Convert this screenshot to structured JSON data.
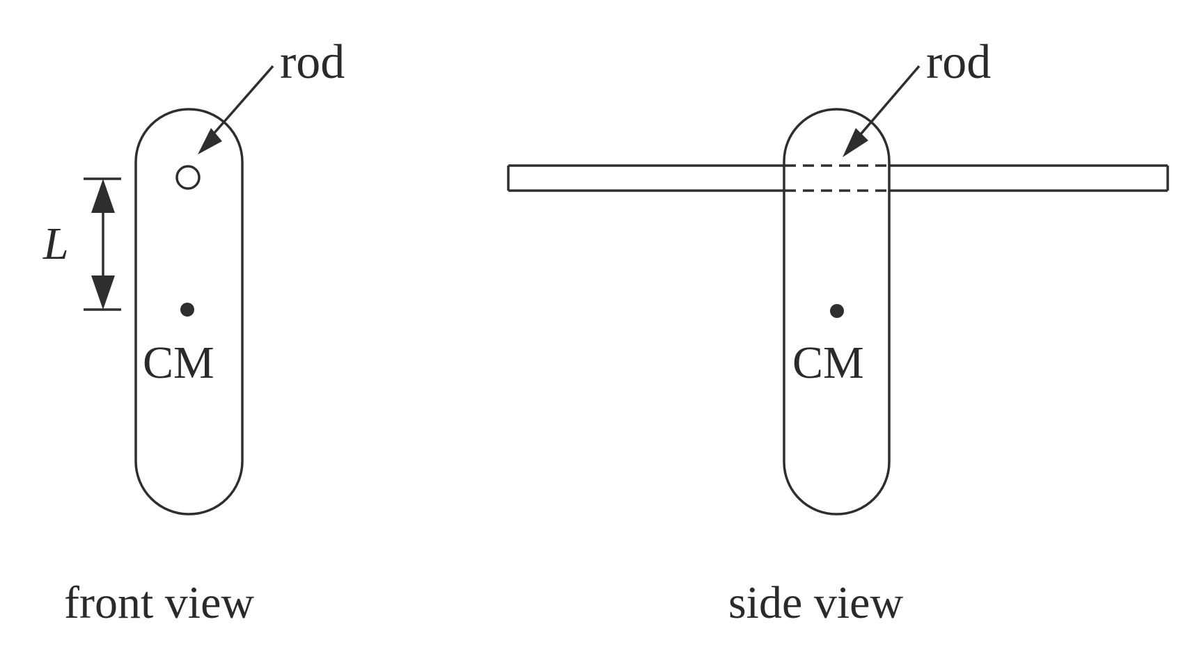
{
  "labels": {
    "rod_front": "rod",
    "rod_side": "rod",
    "length": "L",
    "cm_front": "CM",
    "cm_side": "CM"
  },
  "captions": {
    "front": "front view",
    "side": "side view"
  }
}
